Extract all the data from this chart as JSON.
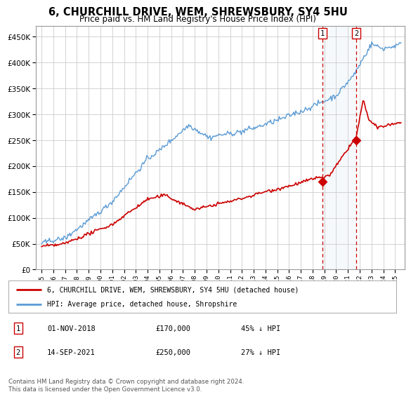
{
  "title": "6, CHURCHILL DRIVE, WEM, SHREWSBURY, SY4 5HU",
  "subtitle": "Price paid vs. HM Land Registry's House Price Index (HPI)",
  "legend_line1": "6, CHURCHILL DRIVE, WEM, SHREWSBURY, SY4 5HU (detached house)",
  "legend_line2": "HPI: Average price, detached house, Shropshire",
  "sale1_date": "01-NOV-2018",
  "sale1_price": 170000,
  "sale1_label": "45% ↓ HPI",
  "sale2_date": "14-SEP-2021",
  "sale2_price": 250000,
  "sale2_label": "27% ↓ HPI",
  "footer": "Contains HM Land Registry data © Crown copyright and database right 2024.\nThis data is licensed under the Open Government Licence v3.0.",
  "hpi_color": "#5b9bd5",
  "price_color": "#cc0000",
  "marker_color": "#cc0000",
  "vline_color": "#cc0000",
  "grid_color": "#cccccc",
  "background_color": "#ffffff",
  "highlight_bg": "#dce9f5",
  "ylim": [
    0,
    470000
  ],
  "yticks": [
    0,
    50000,
    100000,
    150000,
    200000,
    250000,
    300000,
    350000,
    400000,
    450000
  ],
  "sale1_x": 2018.833,
  "sale2_x": 2021.708
}
